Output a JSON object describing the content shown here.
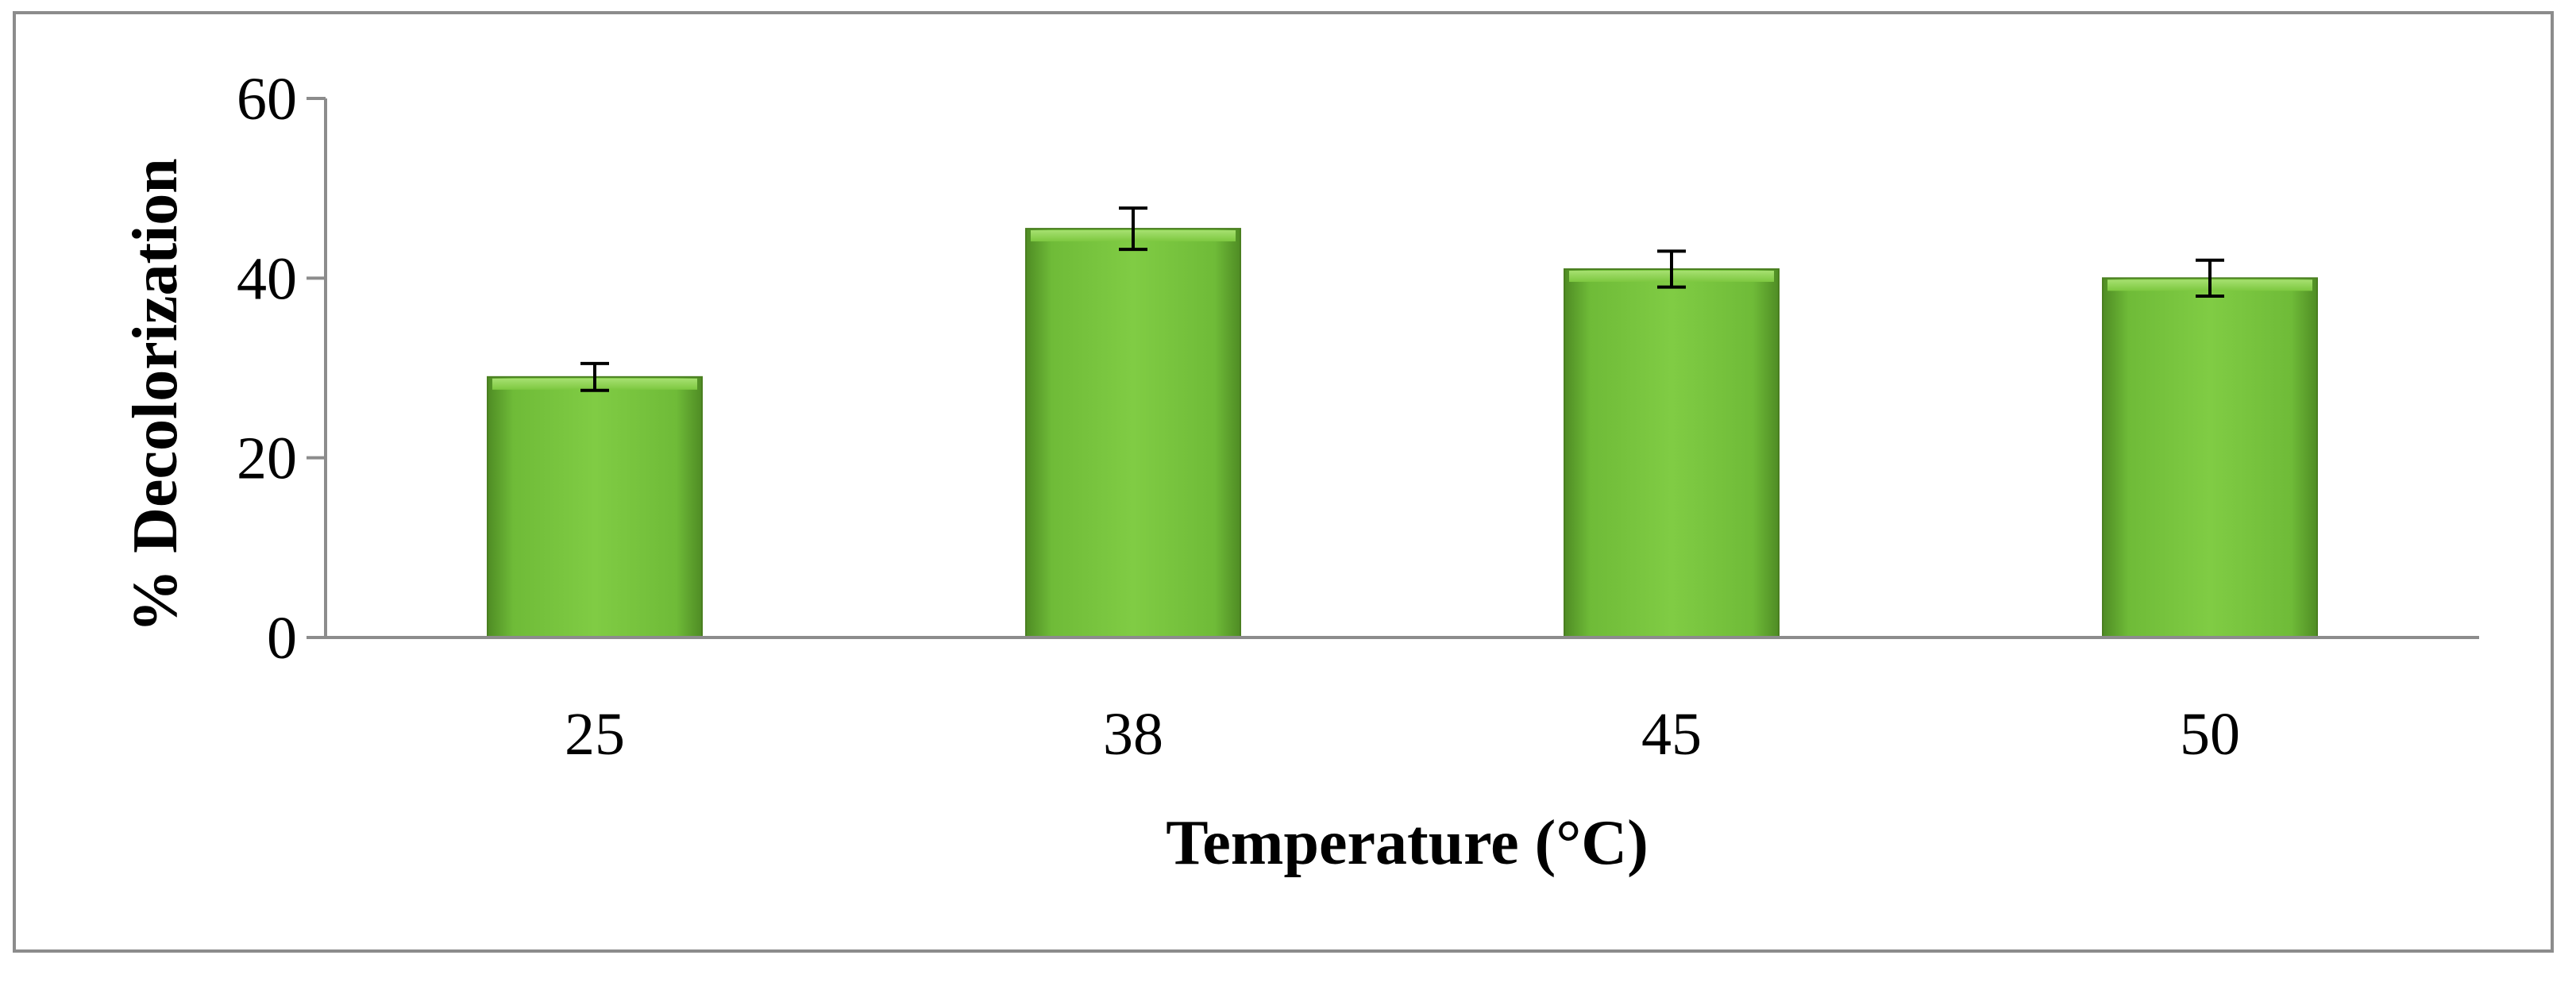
{
  "chart_data": {
    "type": "bar",
    "title": "",
    "xlabel": "Temperature (°C)",
    "ylabel": "% Decolorization",
    "categories": [
      "25",
      "38",
      "45",
      "50"
    ],
    "values": [
      29,
      45.5,
      41,
      40
    ],
    "error": [
      1.5,
      2.3,
      2.0,
      2.0
    ],
    "ylim": [
      0,
      60
    ],
    "yticks": [
      "0",
      "20",
      "40",
      "60"
    ],
    "grid": false,
    "legend": "none",
    "colors": {
      "bar_light": "#7dc840",
      "bar_mid": "#6ab632",
      "bar_dark": "#4e8a22",
      "axis": "#8c8c8c",
      "error_bar": "#000000"
    }
  }
}
